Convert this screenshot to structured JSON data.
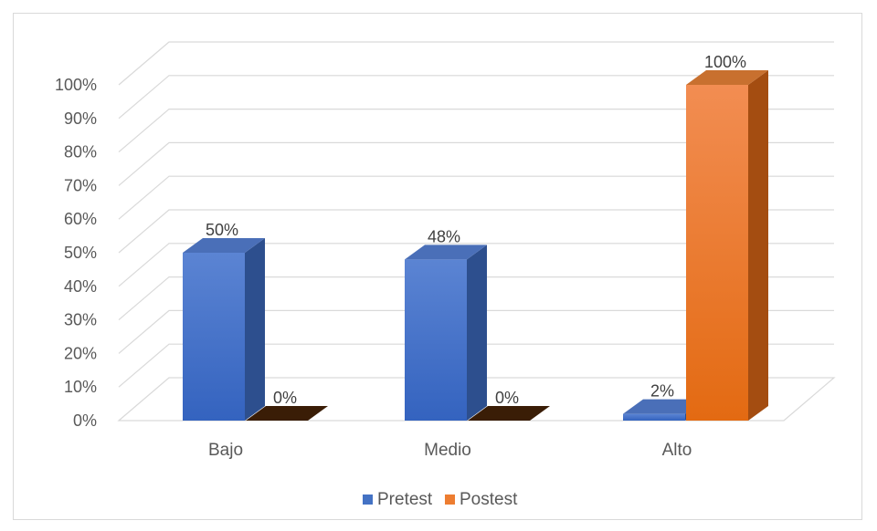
{
  "chart_data": {
    "type": "bar",
    "categories": [
      "Bajo",
      "Medio",
      "Alto"
    ],
    "series": [
      {
        "name": "Pretest",
        "values": [
          50,
          48,
          2
        ],
        "labels": [
          "50%",
          "48%",
          "2%"
        ],
        "color": "#4472c4"
      },
      {
        "name": "Postest",
        "values": [
          0,
          0,
          100
        ],
        "labels": [
          "0%",
          "0%",
          "100%"
        ],
        "color": "#ed7d31"
      }
    ],
    "ylim": [
      0,
      100
    ],
    "yticks": [
      "0%",
      "10%",
      "20%",
      "30%",
      "40%",
      "50%",
      "60%",
      "70%",
      "80%",
      "90%",
      "100%"
    ],
    "grid": true,
    "legend": "bottom",
    "style": "3d-column"
  }
}
